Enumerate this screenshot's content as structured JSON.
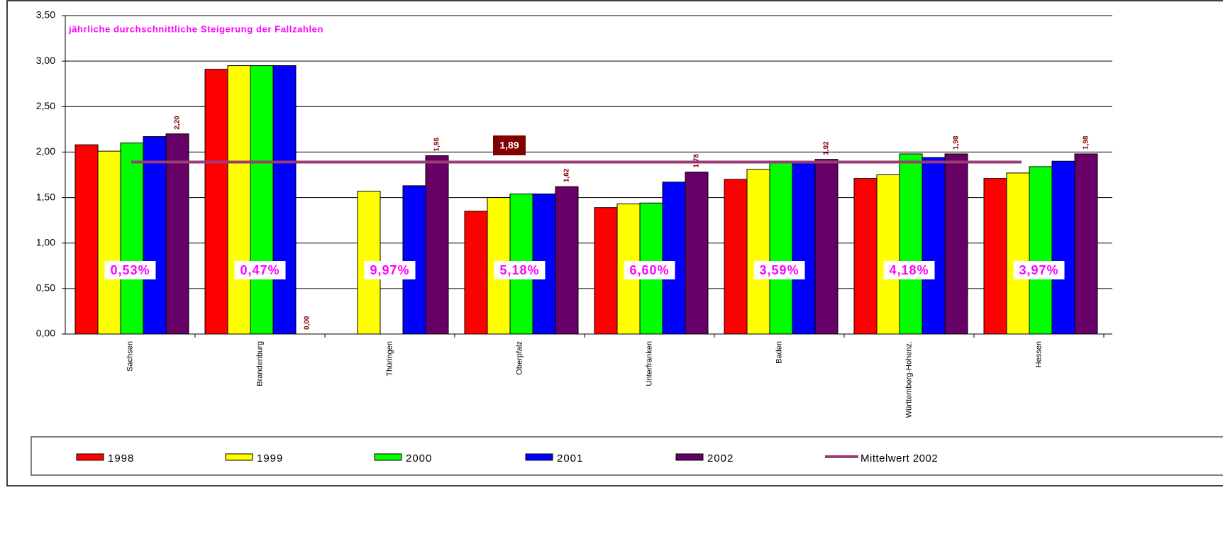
{
  "chart_data": {
    "type": "bar",
    "title": "jährliche durchschnittliche Steigerung der Fallzahlen",
    "categories": [
      "Sachsen",
      "Brandenburg",
      "Thüringen",
      "Oberpfalz",
      "Unterfranken",
      "Baden",
      "Württemberg-Hohenz.",
      "Hessen"
    ],
    "series": [
      {
        "name": "1998",
        "color": "#ff0000",
        "values": [
          2.08,
          2.91,
          null,
          1.35,
          1.39,
          1.7,
          1.71,
          1.71
        ]
      },
      {
        "name": "1999",
        "color": "#ffff00",
        "values": [
          2.01,
          2.95,
          1.57,
          1.5,
          1.43,
          1.81,
          1.75,
          1.77
        ]
      },
      {
        "name": "2000",
        "color": "#00ff00",
        "values": [
          2.1,
          2.95,
          null,
          1.54,
          1.44,
          1.88,
          1.98,
          1.84
        ]
      },
      {
        "name": "2001",
        "color": "#0000ff",
        "values": [
          2.17,
          2.95,
          1.63,
          1.54,
          1.67,
          1.89,
          1.94,
          1.9
        ]
      },
      {
        "name": "2002",
        "color": "#660066",
        "values": [
          2.2,
          0.0,
          1.96,
          1.62,
          1.78,
          1.92,
          1.98,
          1.98
        ],
        "value_labels": [
          "2,20",
          "0,00",
          "1,96",
          "1,62",
          "1,78",
          "1,92",
          "1,98",
          "1,98"
        ]
      }
    ],
    "mean_line": {
      "name": "Mittelwert 2002",
      "value": 1.89,
      "label": "1,89",
      "color": "#993d73"
    },
    "annotations": [
      "0,53%",
      "0,47%",
      "9,97%",
      "5,18%",
      "6,60%",
      "3,59%",
      "4,18%",
      "3,97%"
    ],
    "ylim": [
      0,
      3.5
    ],
    "yticks": [
      {
        "value": 0,
        "label": "0,00"
      },
      {
        "value": 0.5,
        "label": "0,50"
      },
      {
        "value": 1,
        "label": "1,00"
      },
      {
        "value": 1.5,
        "label": "1,50"
      },
      {
        "value": 2,
        "label": "2,00"
      },
      {
        "value": 2.5,
        "label": "2,50"
      },
      {
        "value": 3,
        "label": "3,00"
      },
      {
        "value": 3.5,
        "label": "3,50"
      }
    ],
    "grid": true
  }
}
